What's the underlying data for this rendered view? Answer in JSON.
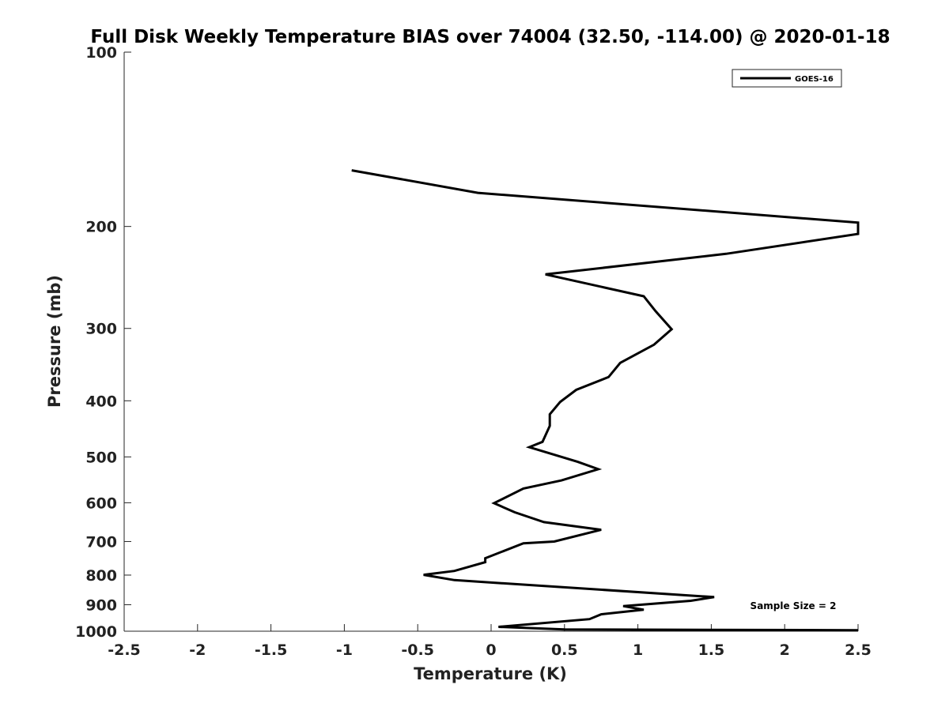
{
  "chart_data": {
    "type": "line",
    "title": "Full Disk Weekly Temperature BIAS over 74004 (32.50, -114.00) @ 2020-01-18",
    "xlabel": "Temperature (K)",
    "ylabel": "Pressure (mb)",
    "xlim": [
      -2.5,
      2.5
    ],
    "ylim": [
      100,
      1000
    ],
    "y_scale": "log",
    "y_reversed": true,
    "x_ticks": [
      -2.5,
      -2,
      -1.5,
      -1,
      -0.5,
      0,
      0.5,
      1,
      1.5,
      2,
      2.5
    ],
    "x_tick_labels": [
      "-2.5",
      "-2",
      "-1.5",
      "-1",
      "-0.5",
      "0",
      "0.5",
      "1",
      "1.5",
      "2",
      "2.5"
    ],
    "y_ticks": [
      100,
      200,
      300,
      400,
      500,
      600,
      700,
      800,
      900,
      1000
    ],
    "y_tick_labels": [
      "100",
      "200",
      "300",
      "400",
      "500",
      "600",
      "700",
      "800",
      "900",
      "1000"
    ],
    "grid": false,
    "legend_position": "top-right",
    "annotation": "Sample Size = 2",
    "series": [
      {
        "name": "GOES-16",
        "color": "#000000",
        "x": [
          -0.95,
          -0.09,
          2.5,
          2.5,
          1.6,
          0.37,
          1.04,
          1.12,
          1.23,
          1.11,
          0.88,
          0.8,
          0.58,
          0.47,
          0.4,
          0.4,
          0.35,
          0.26,
          0.59,
          0.73,
          0.48,
          0.22,
          0.02,
          0.16,
          0.36,
          0.75,
          0.43,
          0.22,
          -0.04,
          -0.04,
          -0.25,
          -0.46,
          -0.25,
          1.52,
          1.36,
          0.9,
          1.04,
          0.75,
          0.67,
          0.05,
          0.5,
          2.5
        ],
        "y": [
          160,
          175,
          197,
          206,
          223,
          242,
          264,
          280,
          301,
          320,
          344,
          364,
          383,
          402,
          422,
          442,
          471,
          481,
          510,
          525,
          549,
          567,
          601,
          623,
          648,
          668,
          700,
          705,
          748,
          760,
          787,
          799,
          816,
          873,
          886,
          905,
          918,
          935,
          953,
          983,
          993,
          996
        ]
      }
    ]
  }
}
